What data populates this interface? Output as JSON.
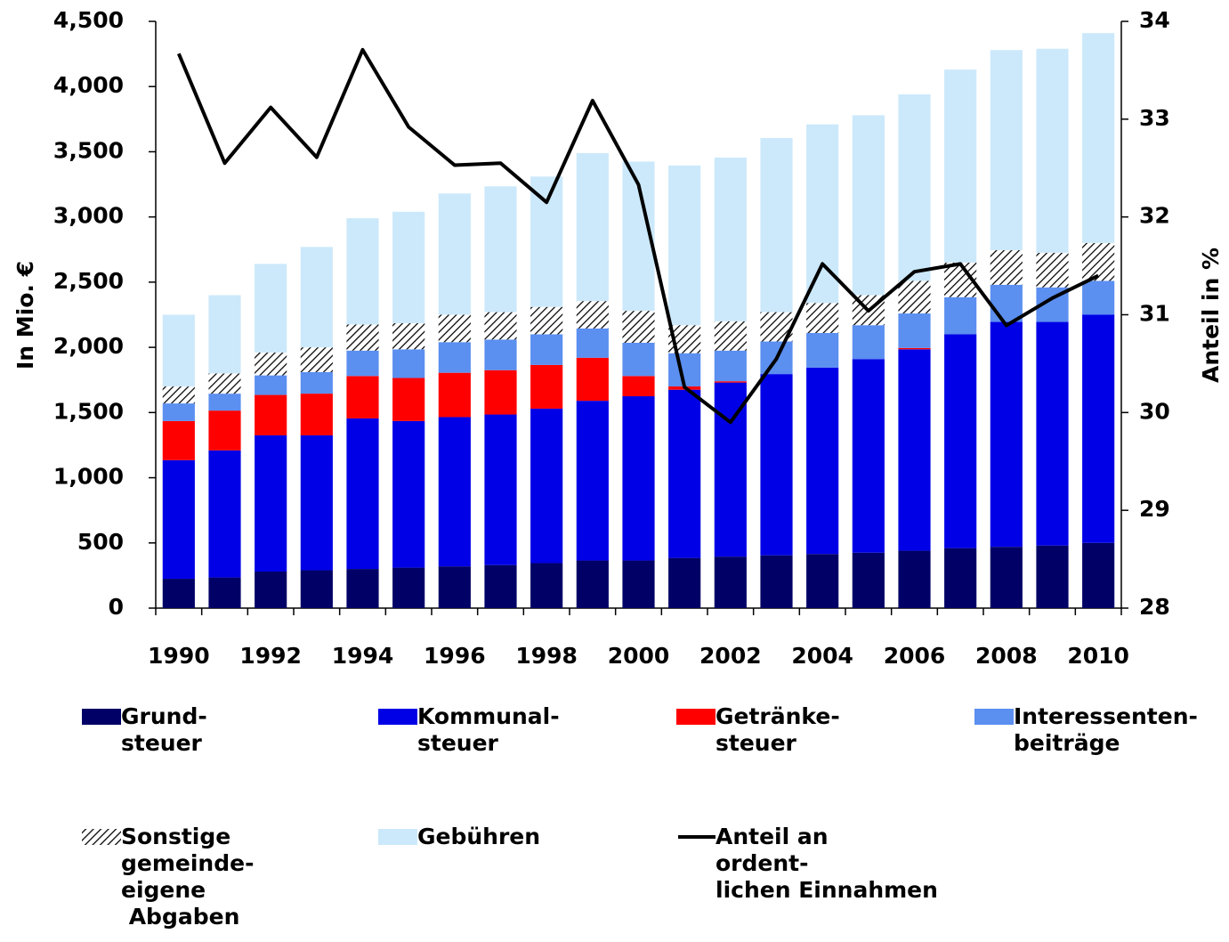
{
  "chart_data": {
    "type": "bar",
    "stacked": true,
    "categories": [
      "1990",
      null,
      "1992",
      null,
      "1994",
      null,
      "1996",
      null,
      "1998",
      null,
      "2000",
      null,
      "2002",
      null,
      "2004",
      null,
      "2006",
      null,
      "2008",
      null,
      "2010"
    ],
    "ylabel": "In Mio. €",
    "y2label": "Anteil in %",
    "ylim": [
      0,
      4500
    ],
    "yticks": [
      0,
      500,
      {
        "value": 1000,
        "label": "1,000"
      },
      {
        "value": 1500,
        "label": "1,500"
      },
      {
        "value": 2000,
        "label": "2,000"
      },
      {
        "value": 2500,
        "label": "2,500"
      },
      {
        "value": 3000,
        "label": "3,000"
      },
      {
        "value": 3500,
        "label": "3,500"
      },
      {
        "value": 4000,
        "label": "4,000"
      },
      {
        "value": 4500,
        "label": "4,500"
      }
    ],
    "y2lim": [
      28,
      34
    ],
    "y2ticks": [
      28,
      29,
      30,
      31,
      32,
      33,
      34
    ],
    "grid": false,
    "series": [
      {
        "name": "Grund-\nsteuer",
        "color": "#000066",
        "values": [
          225,
          235,
          280,
          290,
          300,
          310,
          320,
          330,
          345,
          365,
          365,
          385,
          395,
          405,
          415,
          425,
          440,
          460,
          470,
          480,
          500
        ]
      },
      {
        "name": "Kommunal-\nsteuer",
        "color": "#0000e6",
        "values": [
          910,
          975,
          1045,
          1035,
          1155,
          1125,
          1145,
          1155,
          1185,
          1225,
          1260,
          1290,
          1335,
          1390,
          1430,
          1485,
          1545,
          1640,
          1725,
          1715,
          1750
        ]
      },
      {
        "name": "Getränke-\nsteuer",
        "color": "#ff0000",
        "values": [
          300,
          305,
          310,
          320,
          325,
          330,
          340,
          340,
          335,
          330,
          155,
          25,
          10,
          0,
          0,
          0,
          10,
          0,
          0,
          0,
          0
        ]
      },
      {
        "name": "Interessenten-\nbeiträge",
        "color": "#5b8ff0",
        "values": [
          135,
          130,
          150,
          165,
          195,
          220,
          235,
          235,
          235,
          225,
          255,
          255,
          235,
          250,
          265,
          260,
          265,
          285,
          285,
          265,
          260
        ]
      },
      {
        "name": "Sonstige\ngemeinde-\neigene\n Abgaben",
        "color": "#000000",
        "hatch": true,
        "values": [
          130,
          155,
          175,
          190,
          200,
          200,
          210,
          210,
          210,
          210,
          245,
          215,
          225,
          225,
          230,
          230,
          250,
          265,
          265,
          265,
          290
        ]
      },
      {
        "name": "Gebühren",
        "color": "#cce9fb",
        "values": [
          550,
          600,
          680,
          770,
          815,
          855,
          930,
          965,
          1000,
          1135,
          1145,
          1225,
          1255,
          1335,
          1370,
          1380,
          1430,
          1480,
          1535,
          1565,
          1610
        ]
      },
      {
        "name": "Anteil an\nordent-\nlichen Einnahmen",
        "color": "#000000",
        "type": "line",
        "axis": "y2",
        "values": [
          33.67,
          32.55,
          33.12,
          32.61,
          33.71,
          32.92,
          32.53,
          32.55,
          32.15,
          33.19,
          32.33,
          30.26,
          29.9,
          30.55,
          31.52,
          31.04,
          31.44,
          31.52,
          30.89,
          31.17,
          31.4
        ]
      }
    ]
  }
}
